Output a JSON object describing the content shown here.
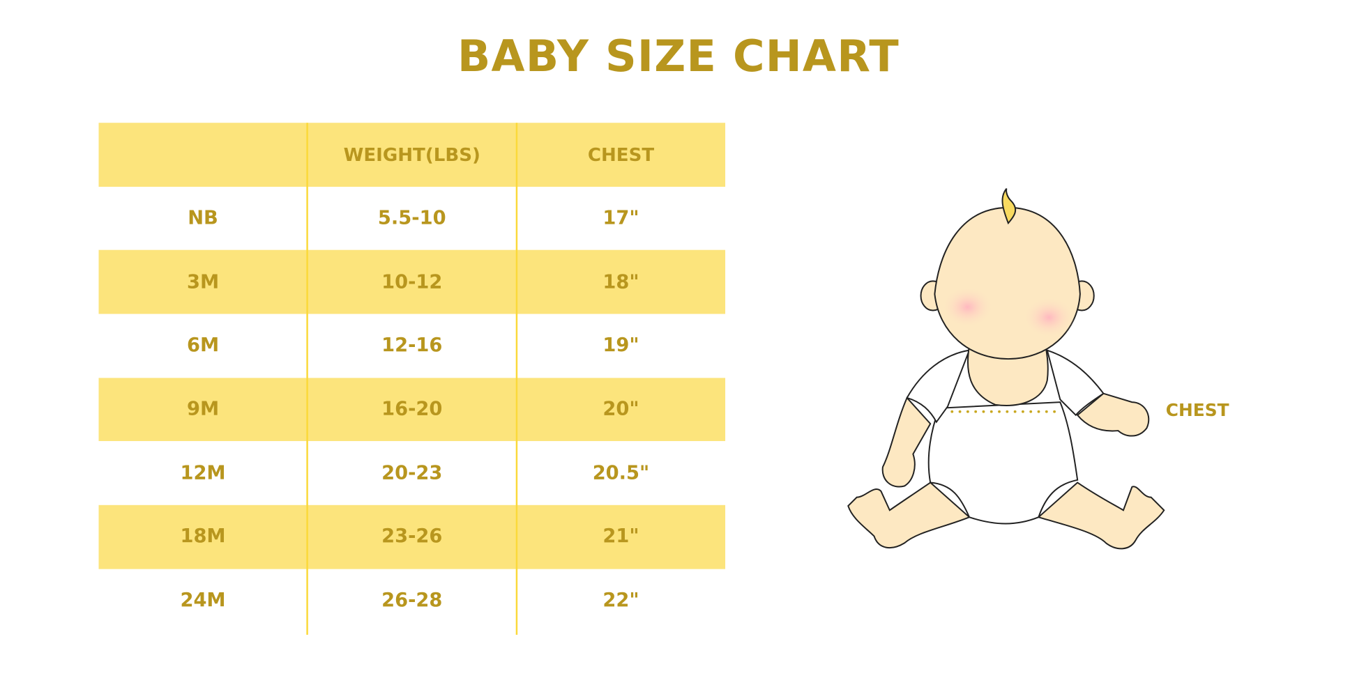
{
  "title": "BABY SIZE CHART",
  "table": {
    "headers": [
      "",
      "WEIGHT(LBS)",
      "CHEST"
    ],
    "rows": [
      [
        "NB",
        "5.5-10",
        "17\""
      ],
      [
        "3M",
        "10-12",
        "18\""
      ],
      [
        "6M",
        "12-16",
        "19\""
      ],
      [
        "9M",
        "16-20",
        "20\""
      ],
      [
        "12M",
        "20-23",
        "20.5\""
      ],
      [
        "18M",
        "23-26",
        "21\""
      ],
      [
        "24M",
        "26-28",
        "22\""
      ]
    ]
  },
  "illustration": {
    "chest_label": "CHEST"
  },
  "colors": {
    "accent": "#b8961e",
    "band": "#fce47c",
    "divider": "#fbd93a",
    "skin": "#fde8c2"
  }
}
